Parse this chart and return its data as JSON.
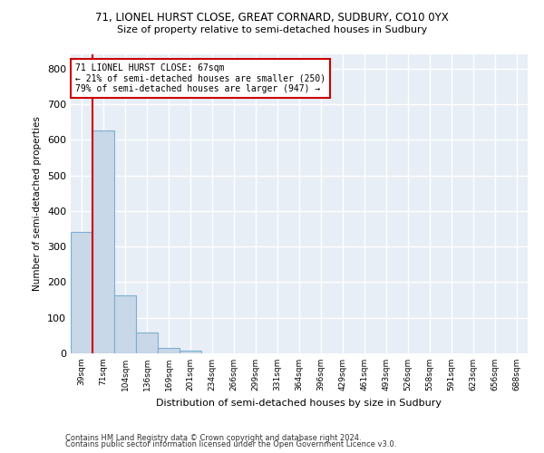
{
  "title1": "71, LIONEL HURST CLOSE, GREAT CORNARD, SUDBURY, CO10 0YX",
  "title2": "Size of property relative to semi-detached houses in Sudbury",
  "xlabel": "Distribution of semi-detached houses by size in Sudbury",
  "ylabel": "Number of semi-detached properties",
  "categories": [
    "39sqm",
    "71sqm",
    "104sqm",
    "136sqm",
    "169sqm",
    "201sqm",
    "234sqm",
    "266sqm",
    "299sqm",
    "331sqm",
    "364sqm",
    "396sqm",
    "429sqm",
    "461sqm",
    "493sqm",
    "526sqm",
    "558sqm",
    "591sqm",
    "623sqm",
    "656sqm",
    "688sqm"
  ],
  "values": [
    340,
    625,
    163,
    58,
    16,
    8,
    0,
    0,
    0,
    0,
    0,
    0,
    0,
    0,
    0,
    0,
    0,
    0,
    0,
    0,
    0
  ],
  "bar_color": "#c8d8e8",
  "bar_edge_color": "#7bafd4",
  "annotation_line1": "71 LIONEL HURST CLOSE: 67sqm",
  "annotation_line2": "← 21% of semi-detached houses are smaller (250)",
  "annotation_line3": "79% of semi-detached houses are larger (947) →",
  "annotation_box_color": "#ffffff",
  "annotation_box_edge_color": "#cc0000",
  "marker_line_color": "#cc0000",
  "ylim": [
    0,
    840
  ],
  "yticks": [
    0,
    100,
    200,
    300,
    400,
    500,
    600,
    700,
    800
  ],
  "bg_color": "#e8eef5",
  "grid_color": "#ffffff",
  "footer1": "Contains HM Land Registry data © Crown copyright and database right 2024.",
  "footer2": "Contains public sector information licensed under the Open Government Licence v3.0."
}
